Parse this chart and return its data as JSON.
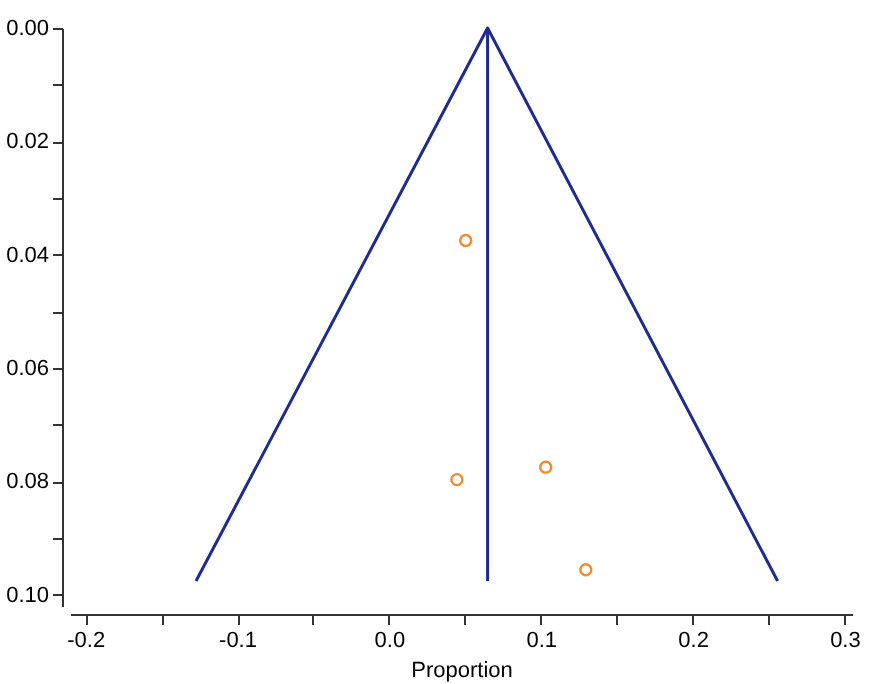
{
  "chart_data": {
    "type": "scatter",
    "xlabel": "Proportion",
    "series": [
      {
        "type": "line",
        "color": "#1f2a8f",
        "marker": "none",
        "line_style": "solid",
        "x": [
          -0.127,
          0.065,
          0.256
        ],
        "values": [
          0.0976,
          0,
          0.0976
        ]
      },
      {
        "type": "line",
        "color": "#1f2a8f",
        "marker": "none",
        "line_style": "solid",
        "x": [
          0.065,
          0.065
        ],
        "values": [
          0,
          0.0976
        ]
      },
      {
        "color": "#f28a30",
        "marker": "circle",
        "x": [
          0.0506,
          0.0448,
          0.1033,
          0.1297
        ],
        "values": [
          0.0375,
          0.0797,
          0.0775,
          0.0956
        ]
      }
    ],
    "xlim": [
      -0.21,
      0.305
    ],
    "xticks": [
      -0.2,
      {
        "value": -0.15,
        "label": null
      },
      -0.1,
      {
        "value": -0.05,
        "label": null
      },
      {
        "value": 0,
        "label": "0.0"
      },
      {
        "value": 0.05,
        "label": null
      },
      0.1,
      {
        "value": 0.15,
        "label": null
      },
      0.2,
      {
        "value": 0.25,
        "label": null
      },
      0.3
    ],
    "ylim": [
      0.102,
      0
    ],
    "yticks": [
      {
        "value": 0,
        "label": "0.00"
      },
      {
        "value": 0.01,
        "label": null
      },
      {
        "value": 0.02,
        "label": "0.02"
      },
      {
        "value": 0.03,
        "label": null
      },
      {
        "value": 0.04,
        "label": "0.04"
      },
      {
        "value": 0.05,
        "label": null
      },
      {
        "value": 0.06,
        "label": "0.06"
      },
      {
        "value": 0.07,
        "label": null
      },
      {
        "value": 0.08,
        "label": "0.08"
      },
      {
        "value": 0.09,
        "label": null
      },
      {
        "value": 0.1,
        "label": "0.10"
      }
    ],
    "grid": false,
    "legend": false
  }
}
